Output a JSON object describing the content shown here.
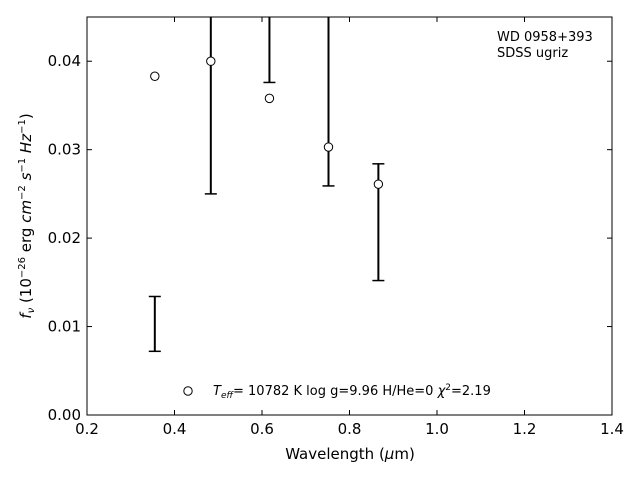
{
  "chart_data": {
    "type": "scatter",
    "title": "",
    "xlabel": "Wavelength (μm)",
    "ylabel": "f_ν (10^-26 erg cm^-2 s^-1 Hz^-1)",
    "xlim": [
      0.2,
      1.4
    ],
    "ylim": [
      0.0,
      0.045
    ],
    "x_ticks": [
      0.2,
      0.4,
      0.6,
      0.8,
      1.0,
      1.2,
      1.4
    ],
    "x_tick_labels": [
      "0.2",
      "0.4",
      "0.6",
      "0.8",
      "1.0",
      "1.2",
      "1.4"
    ],
    "y_ticks": [
      0.0,
      0.01,
      0.02,
      0.03,
      0.04
    ],
    "y_tick_labels": [
      "0.00",
      "0.01",
      "0.02",
      "0.03",
      "0.04"
    ],
    "grid": false,
    "model_points": {
      "x": [
        0.355,
        0.483,
        0.617,
        0.752,
        0.866
      ],
      "y": [
        0.0383,
        0.04,
        0.0358,
        0.0303,
        0.0261
      ]
    },
    "observed": {
      "x": [
        0.355,
        0.483,
        0.617,
        0.752,
        0.866
      ],
      "y": [
        0.0103,
        0.042,
        0.045,
        0.045,
        0.0218
      ],
      "yerr": [
        0.0031,
        0.017,
        0.0074,
        0.0191,
        0.0066
      ]
    },
    "annotations": {
      "object": "WD 0958+393",
      "survey": "SDSS ugriz",
      "fit_teff_symbol": "T",
      "fit_teff_sub": "eff",
      "fit_teff_value": "= 10782 K  log g=9.96  H/He=0  ",
      "fit_chi_symbol": "χ",
      "fit_chi_sup": "2",
      "fit_chi_value": "=2.19"
    }
  }
}
